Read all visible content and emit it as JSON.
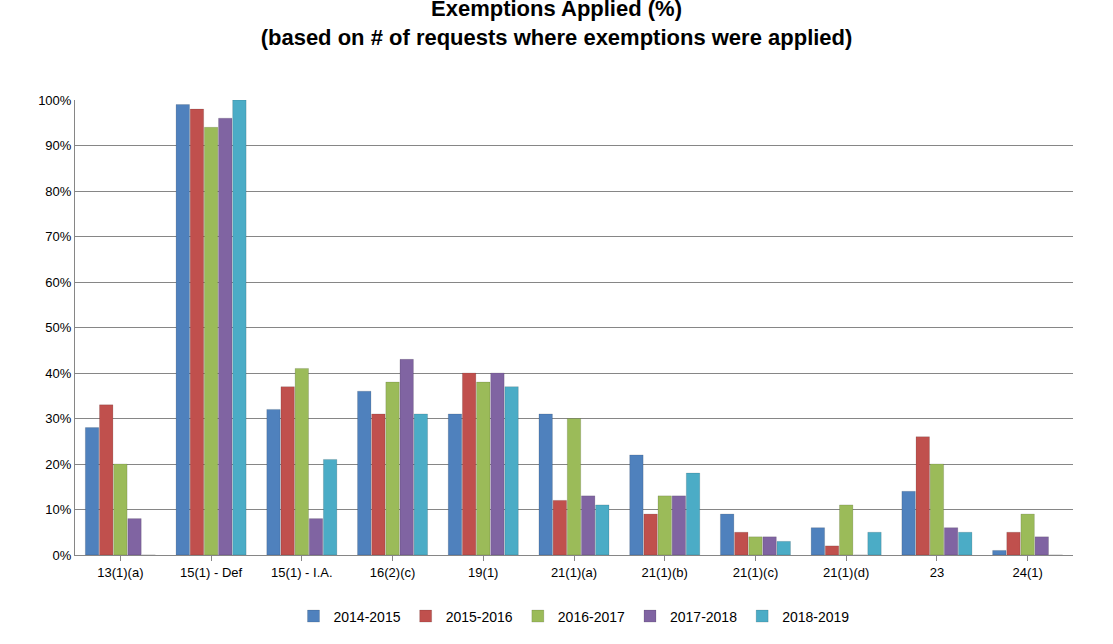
{
  "chart_data": {
    "type": "bar",
    "title": "Exemptions Applied (%)",
    "subtitle": "(based on # of requests where exemptions were applied)",
    "categories": [
      "13(1)(a)",
      "15(1) - Def",
      "15(1) - I.A.",
      "16(2)(c)",
      "19(1)",
      "21(1)(a)",
      "21(1)(b)",
      "21(1)(c)",
      "21(1)(d)",
      "23",
      "24(1)"
    ],
    "series": [
      {
        "name": "2014-2015",
        "color": "#4F81BD",
        "values": [
          28,
          99,
          32,
          36,
          31,
          31,
          22,
          9,
          6,
          14,
          1
        ]
      },
      {
        "name": "2015-2016",
        "color": "#C0504D",
        "values": [
          33,
          98,
          37,
          31,
          40,
          12,
          9,
          5,
          2,
          26,
          5
        ]
      },
      {
        "name": "2016-2017",
        "color": "#9BBB59",
        "values": [
          20,
          94,
          41,
          38,
          38,
          30,
          13,
          4,
          11,
          20,
          9
        ]
      },
      {
        "name": "2017-2018",
        "color": "#8064A2",
        "values": [
          8,
          96,
          8,
          43,
          40,
          13,
          13,
          4,
          0,
          6,
          4
        ]
      },
      {
        "name": "2018-2019",
        "color": "#4BACC6",
        "values": [
          0,
          100,
          21,
          31,
          37,
          11,
          18,
          3,
          5,
          5,
          0
        ]
      }
    ],
    "ylim": [
      0,
      100
    ],
    "yticks": [
      {
        "value": 0,
        "label": "0%"
      },
      {
        "value": 10,
        "label": "10%"
      },
      {
        "value": 20,
        "label": "20%"
      },
      {
        "value": 30,
        "label": "30%"
      },
      {
        "value": 40,
        "label": "40%"
      },
      {
        "value": 50,
        "label": "50%"
      },
      {
        "value": 60,
        "label": "60%"
      },
      {
        "value": 70,
        "label": "70%"
      },
      {
        "value": 80,
        "label": "80%"
      },
      {
        "value": 90,
        "label": "90%"
      },
      {
        "value": 100,
        "label": "100%"
      }
    ],
    "grid": true,
    "legend": "bottom"
  }
}
